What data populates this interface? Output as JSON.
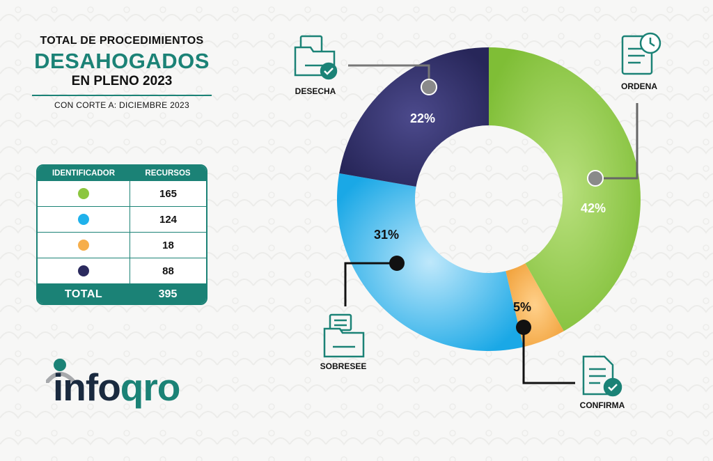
{
  "header": {
    "line1": "TOTAL DE PROCEDIMIENTOS",
    "line2": "DESAHOGADOS",
    "line3": "EN PLENO 2023",
    "cutoff": "CON CORTE A: DICIEMBRE 2023"
  },
  "table": {
    "col_identifier": "IDENTIFICADOR",
    "col_resources": "RECURSOS",
    "rows": [
      {
        "color": "#8cc63f",
        "value": "165"
      },
      {
        "color": "#1fb1eb",
        "value": "124"
      },
      {
        "color": "#f6ae4b",
        "value": "18"
      },
      {
        "color": "#2b2a5e",
        "value": "88"
      }
    ],
    "total_label": "TOTAL",
    "total_value": "395"
  },
  "logo": {
    "text_a": "info",
    "text_b": "qro"
  },
  "chart_data": {
    "type": "pie",
    "donut": true,
    "categories": [
      "ORDENA",
      "CONFIRMA",
      "SOBRESEE",
      "DESECHA"
    ],
    "values": [
      165,
      18,
      124,
      88
    ],
    "percent_labels": [
      "42%",
      "5%",
      "31%",
      "22%"
    ],
    "colors": [
      "#8cc63f",
      "#f6ae4b",
      "#1fb1eb",
      "#2b2a5e"
    ],
    "start_angle_deg": 0,
    "direction": "clockwise"
  }
}
